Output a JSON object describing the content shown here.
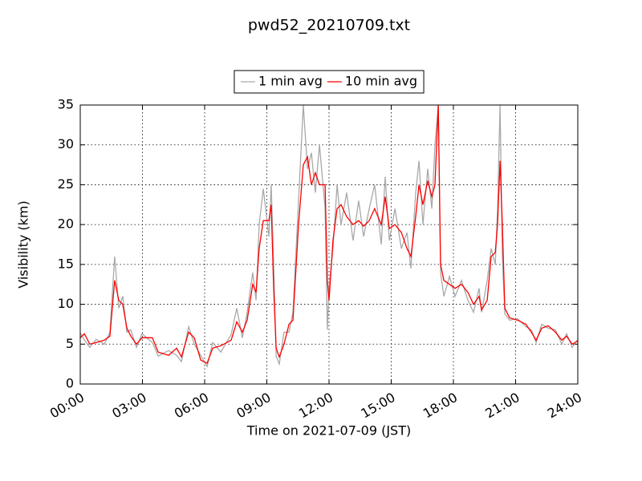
{
  "chart_data": {
    "type": "line",
    "title": "pwd52_20210709.txt",
    "xlabel": "Time on 2021-07-09 (JST)",
    "ylabel": "Visibility (km)",
    "x": [
      0,
      0.2,
      0.46,
      0.77,
      1.16,
      1.43,
      1.66,
      1.86,
      2.05,
      2.25,
      2.44,
      2.71,
      2.98,
      3.48,
      3.76,
      4.26,
      4.65,
      4.88,
      5.23,
      5.5,
      5.81,
      6.12,
      6.39,
      6.78,
      7.28,
      7.55,
      7.82,
      8.05,
      8.32,
      8.48,
      8.63,
      8.83,
      9.1,
      9.21,
      9.33,
      9.45,
      9.6,
      9.83,
      10.07,
      10.26,
      10.53,
      10.76,
      10.96,
      11.15,
      11.34,
      11.54,
      11.81,
      11.92,
      12.0,
      12.19,
      12.39,
      12.58,
      12.85,
      13.16,
      13.43,
      13.67,
      13.94,
      14.2,
      14.52,
      14.71,
      14.91,
      15.18,
      15.49,
      15.76,
      15.95,
      16.18,
      16.34,
      16.53,
      16.76,
      16.96,
      17.11,
      17.27,
      17.38,
      17.54,
      17.81,
      18.08,
      18.39,
      18.7,
      18.97,
      19.24,
      19.36,
      19.63,
      19.82,
      20.02,
      20.13,
      20.25,
      20.36,
      20.48,
      20.71,
      21.1,
      21.49,
      21.76,
      21.99,
      22.26,
      22.57,
      22.92,
      23.23,
      23.46,
      23.73,
      24
    ],
    "series": [
      {
        "name": "1 min avg",
        "color": "#a9a9a9",
        "values": [
          6.4,
          5.5,
          4.6,
          5.6,
          5.0,
          6.5,
          16,
          9.5,
          11,
          6.5,
          6.8,
          4.6,
          6.3,
          5.2,
          3.5,
          4.2,
          3.6,
          2.8,
          7.2,
          5.0,
          3.6,
          2.2,
          5.2,
          4.0,
          6.2,
          9.5,
          5.8,
          9,
          14,
          10.5,
          20,
          24.5,
          18.5,
          25,
          15,
          3.5,
          2.5,
          6.5,
          6.5,
          9,
          23,
          35,
          27,
          29,
          24,
          30,
          22,
          6.8,
          12,
          17,
          25,
          20,
          24,
          18,
          23,
          18.5,
          22,
          25,
          17.5,
          26,
          18,
          22,
          17,
          19,
          14.5,
          24,
          28,
          20,
          27,
          22,
          30,
          35,
          14,
          11,
          13.5,
          11,
          13,
          10.5,
          9,
          12,
          9,
          13,
          17,
          15,
          22,
          35,
          16,
          8.8,
          8,
          8.2,
          7.2,
          6.8,
          5.2,
          7.5,
          7,
          6.8,
          5,
          6.3,
          4.6,
          5.6
        ]
      },
      {
        "name": "10 min avg",
        "color": "#ff0000",
        "values": [
          5.8,
          6.3,
          5,
          5.2,
          5.5,
          6,
          13,
          10.5,
          10,
          7,
          6,
          5,
          5.8,
          5.8,
          4,
          3.6,
          4.5,
          3.4,
          6.5,
          5.8,
          3.0,
          2.6,
          4.5,
          4.8,
          5.5,
          7.8,
          6.5,
          8,
          12.5,
          11.5,
          17,
          20.5,
          20.5,
          22.5,
          12,
          4.5,
          3.4,
          5,
          7.5,
          8,
          20,
          27.5,
          28.5,
          25,
          26.5,
          25,
          25,
          13,
          10.5,
          18,
          22,
          22.5,
          21,
          20,
          20.5,
          19.8,
          20.5,
          22,
          20,
          23.5,
          19.5,
          20,
          19,
          17,
          16,
          21,
          25,
          22.5,
          25.5,
          23.5,
          25,
          35,
          15,
          13,
          12.5,
          12,
          12.5,
          11.5,
          10,
          11,
          9.3,
          10.5,
          16,
          16.5,
          20,
          28,
          20,
          9.5,
          8.3,
          8,
          7.5,
          6.5,
          5.5,
          7,
          7.3,
          6.5,
          5.5,
          6,
          5,
          5.4
        ]
      }
    ],
    "xlim": [
      0,
      24
    ],
    "xticks": [
      {
        "value": 0,
        "label": "00:00"
      },
      {
        "value": 3,
        "label": "03:00"
      },
      {
        "value": 6,
        "label": "06:00"
      },
      {
        "value": 9,
        "label": "09:00"
      },
      {
        "value": 12,
        "label": "12:00"
      },
      {
        "value": 15,
        "label": "15:00"
      },
      {
        "value": 18,
        "label": "18:00"
      },
      {
        "value": 21,
        "label": "21:00"
      },
      {
        "value": 24,
        "label": "24:00"
      }
    ],
    "ylim": [
      0,
      35
    ],
    "yticks": [
      0,
      5,
      10,
      15,
      20,
      25,
      30,
      35
    ],
    "grid": true,
    "legend": "top"
  }
}
